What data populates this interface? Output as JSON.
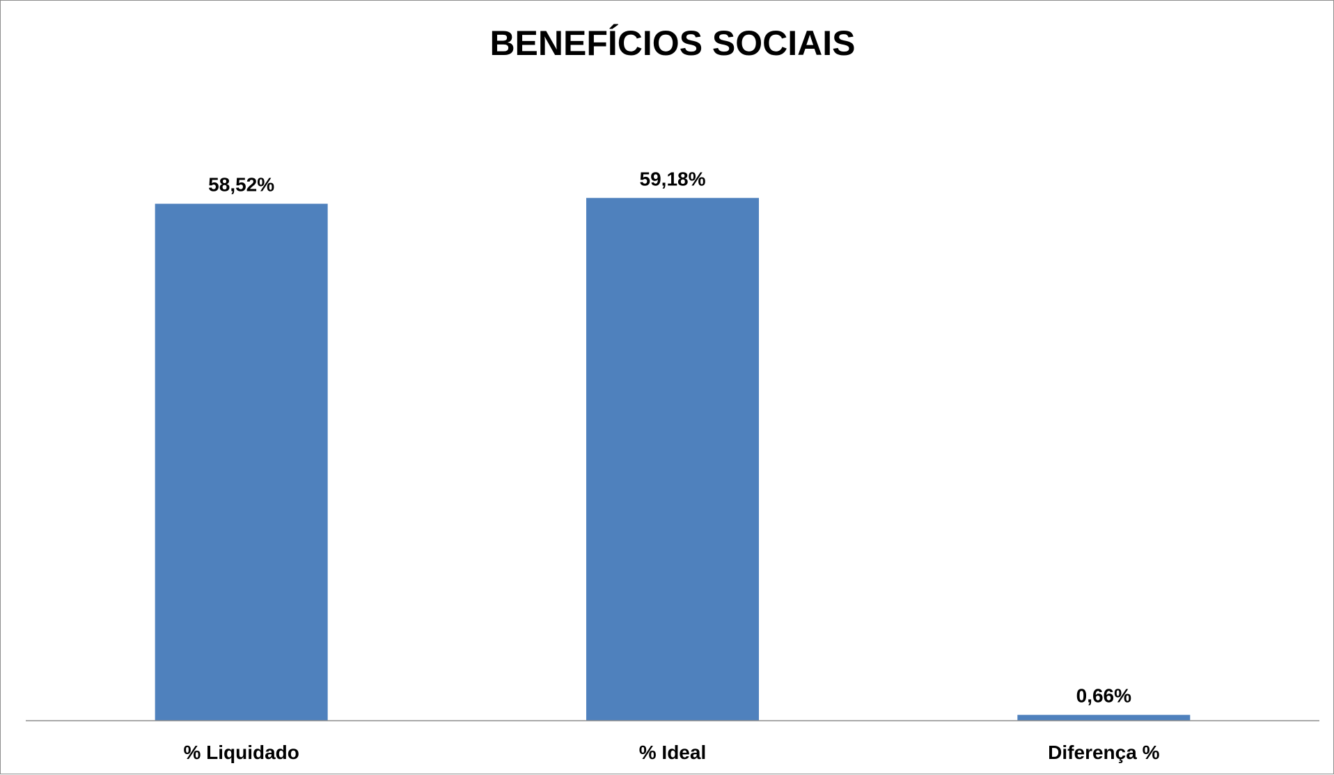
{
  "chart_data": {
    "type": "bar",
    "title": "BENEFÍCIOS SOCIAIS",
    "xlabel": "",
    "ylabel": "",
    "categories": [
      "% Liquidado",
      "% Ideal",
      "Diferença %"
    ],
    "values": [
      58.52,
      59.18,
      0.66
    ],
    "data_labels": [
      "58,52%",
      "59,18%",
      "0,66%"
    ],
    "ylim": [
      0,
      70
    ],
    "grid": false,
    "legend": "none",
    "colors": {
      "bar": "#4f81bd",
      "axis": "#8c8c8c",
      "text": "#000000"
    }
  }
}
